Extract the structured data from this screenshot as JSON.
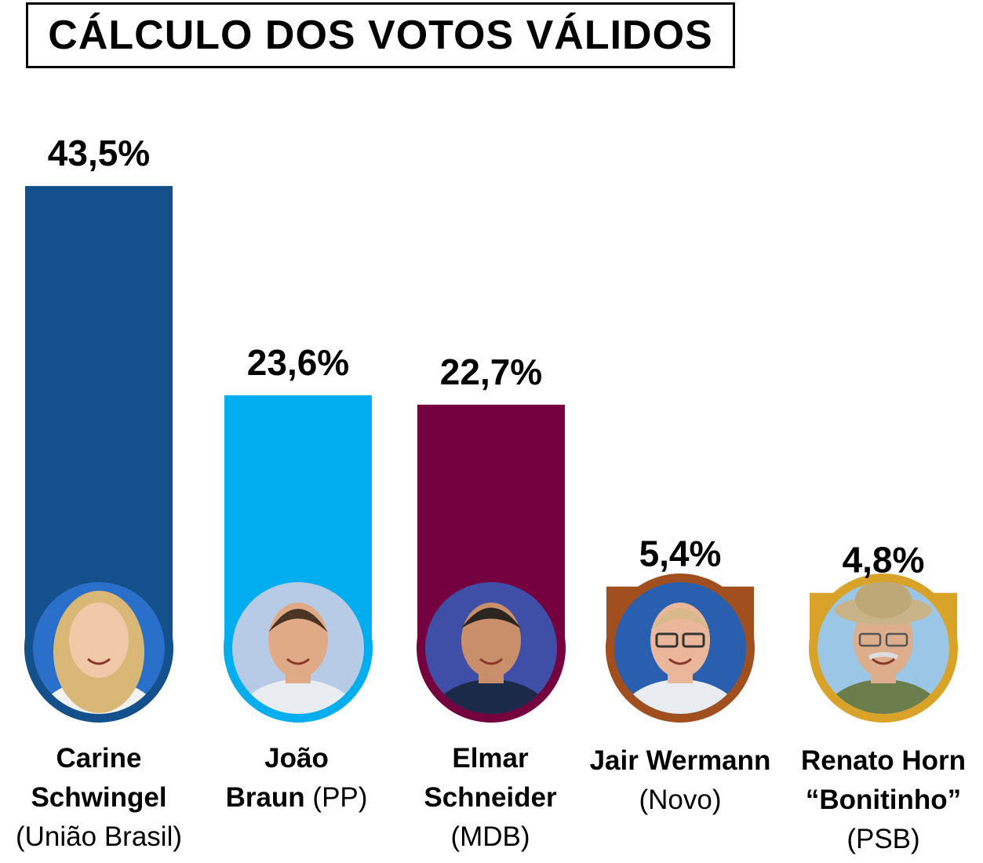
{
  "chart_data": {
    "type": "bar",
    "title": "CÁLCULO DOS VOTOS VÁLIDOS",
    "xlabel": "",
    "ylabel": "",
    "categories": [
      "Carine Schwingel",
      "João Braun",
      "Elmar Schneider",
      "Jair Wermann",
      "Renato Horn “Bonitinho”"
    ],
    "values": [
      43.5,
      23.6,
      22.7,
      5.4,
      4.8
    ],
    "value_labels": [
      "43,5%",
      "23,6%",
      "22,7%",
      "5,4%",
      "4,8%"
    ],
    "colors": [
      "#14508c",
      "#00adee",
      "#740040",
      "#a24f1f",
      "#d9a32a"
    ],
    "grid": false,
    "legend": "none"
  },
  "candidates": [
    {
      "name_line1": "Carine",
      "name_line2": "Schwingel",
      "party": "(União Brasil)",
      "photo": "woman-portrait"
    },
    {
      "name_line1": "João",
      "name_line2": "Braun",
      "party": "(PP)",
      "photo": "man-portrait"
    },
    {
      "name_line1": "Elmar",
      "name_line2": "Schneider",
      "party": "(MDB)",
      "photo": "man-portrait"
    },
    {
      "name_line1": "Jair Wermann",
      "party": "(Novo)",
      "photo": "man-glasses-portrait"
    },
    {
      "name_line1": "Renato Horn",
      "name_line2": "“Bonitinho”",
      "party": "(PSB)",
      "photo": "man-hat-portrait"
    }
  ]
}
